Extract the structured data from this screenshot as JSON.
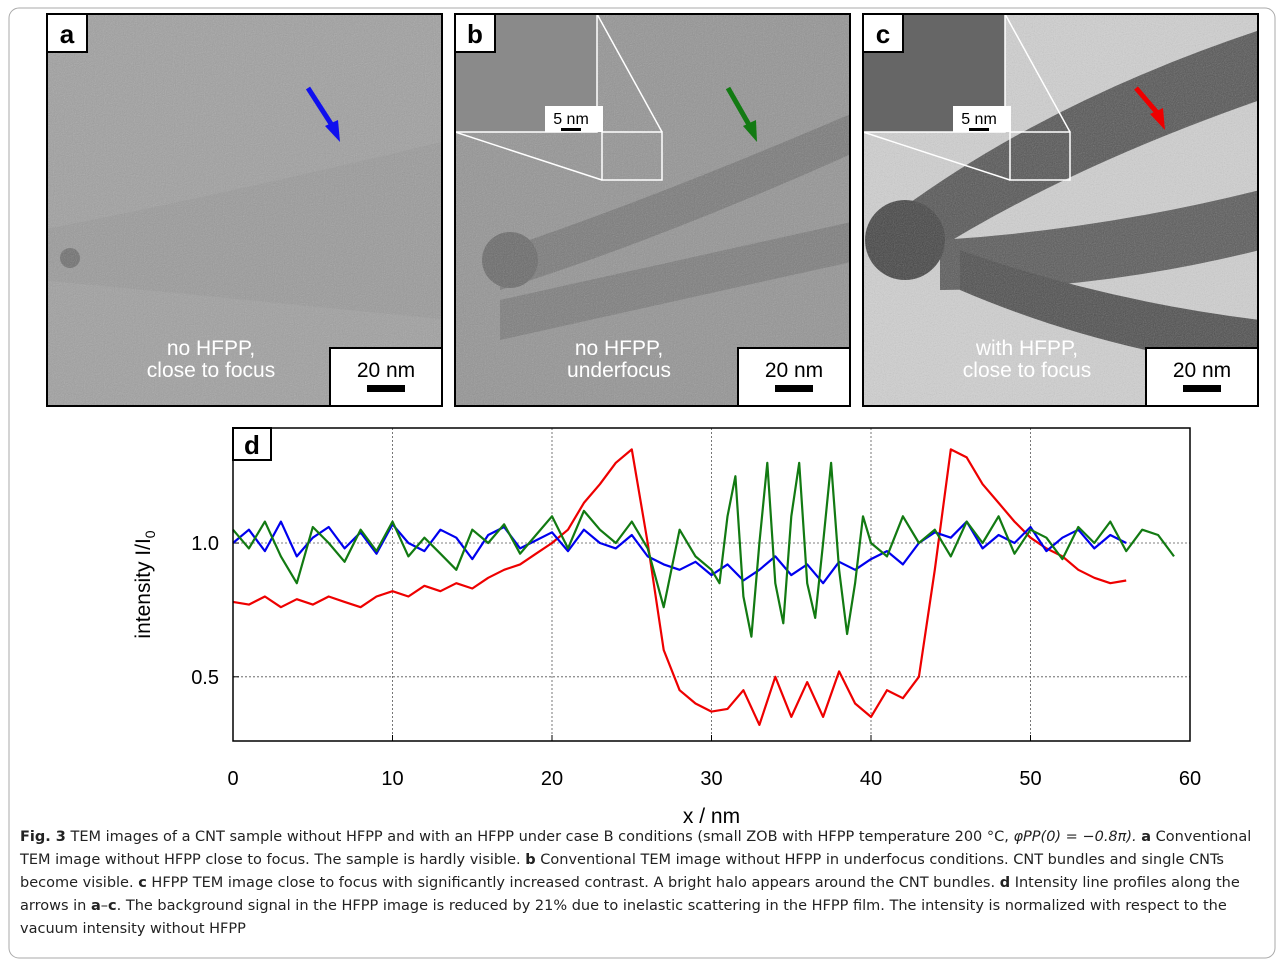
{
  "panels": [
    {
      "label": "a",
      "caption": [
        "no HFPP,",
        "close to focus"
      ],
      "scale": "20 nm"
    },
    {
      "label": "b",
      "caption": [
        "no HFPP,",
        "underfocus"
      ],
      "scale": "20 nm",
      "inset_scale": "5 nm"
    },
    {
      "label": "c",
      "caption": [
        "with HFPP,",
        "close to focus"
      ],
      "scale": "20 nm",
      "inset_scale": "5 nm"
    }
  ],
  "chart_data": {
    "type": "line",
    "panel_label": "d",
    "x_label": "x / nm",
    "y_label": "intensity I/I",
    "y_label_sub": "0",
    "xlim": [
      0,
      60
    ],
    "ylim": [
      0.26,
      1.43
    ],
    "xticks": [
      0,
      10,
      20,
      30,
      40,
      50,
      60
    ],
    "yticks": [
      0.5,
      {
        "value": 1,
        "label": "1.0"
      }
    ],
    "grid": true,
    "series": [
      {
        "color": "#0000ee",
        "x": [
          0,
          1,
          2,
          3,
          4,
          5,
          6,
          7,
          8,
          9,
          10,
          11,
          12,
          13,
          14,
          15,
          16,
          17,
          18,
          19,
          20,
          21,
          22,
          23,
          24,
          25,
          26,
          27,
          28,
          29,
          30,
          31,
          32,
          33,
          34,
          35,
          36,
          37,
          38,
          39,
          40,
          41,
          42,
          43,
          44,
          45,
          46,
          47,
          48,
          49,
          50,
          51,
          52,
          53,
          54,
          55,
          56
        ],
        "values": [
          1.0,
          1.05,
          0.97,
          1.08,
          0.95,
          1.02,
          1.06,
          0.98,
          1.04,
          0.96,
          1.07,
          1.0,
          0.97,
          1.05,
          1.02,
          0.94,
          1.03,
          1.06,
          0.98,
          1.01,
          1.04,
          0.97,
          1.05,
          1.0,
          0.98,
          1.03,
          0.95,
          0.92,
          0.9,
          0.93,
          0.88,
          0.92,
          0.86,
          0.9,
          0.95,
          0.88,
          0.92,
          0.85,
          0.93,
          0.9,
          0.94,
          0.97,
          0.92,
          1.0,
          1.04,
          1.02,
          1.08,
          0.98,
          1.03,
          1.0,
          1.06,
          0.97,
          1.02,
          1.05,
          0.98,
          1.03,
          1.0
        ]
      },
      {
        "color": "#127a12",
        "x": [
          0,
          1,
          2,
          3,
          4,
          5,
          6,
          7,
          8,
          9,
          10,
          11,
          12,
          13,
          14,
          15,
          16,
          17,
          18,
          19,
          20,
          21,
          22,
          23,
          24,
          25,
          26,
          27,
          28,
          29,
          30,
          30.5,
          31,
          31.5,
          32,
          32.5,
          33,
          33.5,
          34,
          34.5,
          35,
          35.5,
          36,
          36.5,
          37,
          37.5,
          38,
          38.5,
          39,
          39.5,
          40,
          41,
          42,
          43,
          44,
          45,
          46,
          47,
          48,
          49,
          50,
          51,
          52,
          53,
          54,
          55,
          56,
          57,
          58,
          59
        ],
        "values": [
          1.05,
          0.98,
          1.08,
          0.95,
          0.85,
          1.06,
          1.0,
          0.93,
          1.05,
          0.97,
          1.08,
          0.95,
          1.02,
          0.96,
          0.9,
          1.05,
          1.0,
          1.07,
          0.96,
          1.03,
          1.1,
          0.98,
          1.12,
          1.05,
          1.0,
          1.08,
          0.98,
          0.76,
          1.05,
          0.95,
          0.9,
          0.85,
          1.1,
          1.25,
          0.8,
          0.65,
          1.0,
          1.3,
          0.85,
          0.7,
          1.1,
          1.3,
          0.85,
          0.72,
          1.0,
          1.3,
          0.9,
          0.66,
          0.85,
          1.1,
          1.0,
          0.95,
          1.1,
          1.0,
          1.05,
          0.95,
          1.08,
          1.0,
          1.1,
          0.96,
          1.05,
          1.02,
          0.94,
          1.06,
          1.0,
          1.08,
          0.97,
          1.05,
          1.03,
          0.95
        ]
      },
      {
        "color": "#ee0000",
        "x": [
          0,
          1,
          2,
          3,
          4,
          5,
          6,
          7,
          8,
          9,
          10,
          11,
          12,
          13,
          14,
          15,
          16,
          17,
          18,
          19,
          20,
          21,
          22,
          23,
          24,
          25,
          26,
          27,
          28,
          29,
          30,
          31,
          32,
          33,
          34,
          35,
          36,
          37,
          38,
          39,
          40,
          41,
          42,
          43,
          44,
          45,
          46,
          47,
          48,
          49,
          50,
          51,
          52,
          53,
          54,
          55,
          56
        ],
        "values": [
          0.78,
          0.77,
          0.8,
          0.76,
          0.79,
          0.77,
          0.8,
          0.78,
          0.76,
          0.8,
          0.82,
          0.8,
          0.84,
          0.82,
          0.85,
          0.83,
          0.87,
          0.9,
          0.92,
          0.96,
          1.0,
          1.05,
          1.15,
          1.22,
          1.3,
          1.35,
          1.0,
          0.6,
          0.45,
          0.4,
          0.37,
          0.38,
          0.45,
          0.32,
          0.5,
          0.35,
          0.48,
          0.35,
          0.52,
          0.4,
          0.35,
          0.45,
          0.42,
          0.5,
          0.9,
          1.35,
          1.32,
          1.22,
          1.15,
          1.08,
          1.02,
          0.98,
          0.95,
          0.9,
          0.87,
          0.85,
          0.86
        ]
      }
    ]
  },
  "caption": [
    "Fig. 3",
    "TEM images of a CNT sample without HFPP and with an HFPP under case B conditions (small ZOB with HFPP temperature 200 °C,",
    "φPP(0) = −0.8π).",
    "a",
    "Conventional TEM image without HFPP close to focus. The sample is hardly visible.",
    "b",
    "Conventional TEM image without HFPP in underfocus conditions. CNT bundles and single CNTs become visible.",
    "c",
    "HFPP TEM image close to focus with significantly increased contrast. A bright halo appears around the CNT bundles.",
    "d",
    "Intensity line profiles along the arrows in",
    "a",
    "–",
    "c",
    ". The background signal in the HFPP image is reduced by 21% due to inelastic scattering in the HFPP film. The intensity is normalized with respect to the vacuum intensity without HFPP"
  ]
}
